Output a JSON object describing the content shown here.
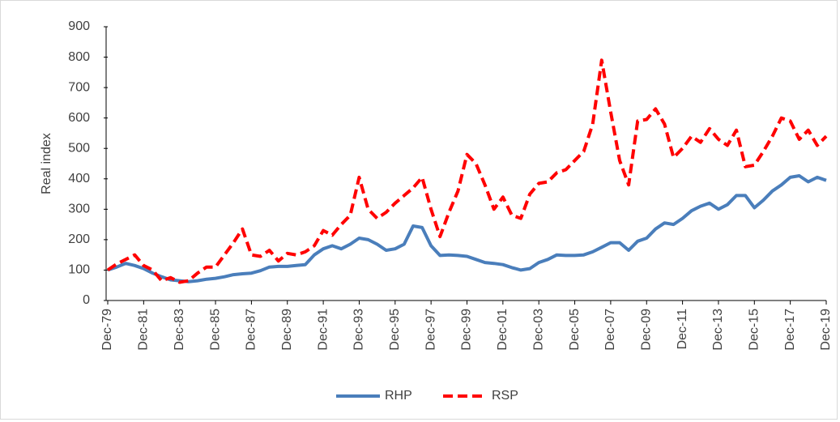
{
  "chart_data": {
    "type": "line",
    "y_label": "Real index",
    "categories": [
      "Dec-79",
      null,
      null,
      null,
      "Dec-81",
      null,
      null,
      null,
      "Dec-83",
      null,
      null,
      null,
      "Dec-85",
      null,
      null,
      null,
      "Dec-87",
      null,
      null,
      null,
      "Dec-89",
      null,
      null,
      null,
      "Dec-91",
      null,
      null,
      null,
      "Dec-93",
      null,
      null,
      null,
      "Dec-95",
      null,
      null,
      null,
      "Dec-97",
      null,
      null,
      null,
      "Dec-99",
      null,
      null,
      null,
      "Dec-01",
      null,
      null,
      null,
      "Dec-03",
      null,
      null,
      null,
      "Dec-05",
      null,
      null,
      null,
      "Dec-07",
      null,
      null,
      null,
      "Dec-09",
      null,
      null,
      null,
      "Dec-11",
      null,
      null,
      null,
      "Dec-13",
      null,
      null,
      null,
      "Dec-15",
      null,
      null,
      null,
      "Dec-17",
      null,
      null,
      null,
      "Dec-19"
    ],
    "series": [
      {
        "name": "RHP",
        "color": "#4a7ebb",
        "dash": false,
        "values": [
          100,
          110,
          122,
          115,
          105,
          90,
          78,
          68,
          65,
          62,
          65,
          70,
          73,
          78,
          85,
          88,
          90,
          98,
          110,
          112,
          112,
          115,
          118,
          150,
          170,
          180,
          170,
          185,
          205,
          200,
          185,
          165,
          170,
          185,
          245,
          240,
          180,
          148,
          150,
          148,
          145,
          135,
          125,
          122,
          118,
          108,
          100,
          105,
          125,
          135,
          150,
          148,
          148,
          150,
          160,
          175,
          190,
          190,
          165,
          195,
          205,
          235,
          255,
          250,
          270,
          295,
          310,
          320,
          300,
          315,
          345,
          345,
          305,
          330,
          360,
          380,
          405,
          410,
          390,
          405,
          395
        ]
      },
      {
        "name": "RSP",
        "color": "#ff0000",
        "dash": true,
        "values": [
          100,
          120,
          135,
          150,
          115,
          100,
          65,
          75,
          60,
          65,
          90,
          110,
          110,
          150,
          190,
          235,
          150,
          145,
          165,
          130,
          155,
          150,
          160,
          180,
          230,
          215,
          250,
          280,
          405,
          300,
          270,
          290,
          320,
          345,
          370,
          405,
          300,
          210,
          290,
          360,
          480,
          450,
          380,
          300,
          340,
          280,
          270,
          350,
          385,
          390,
          420,
          430,
          460,
          490,
          580,
          790,
          620,
          460,
          380,
          590,
          595,
          630,
          580,
          470,
          500,
          540,
          520,
          565,
          530,
          510,
          560,
          440,
          445,
          490,
          540,
          600,
          590,
          530,
          560,
          510,
          540
        ]
      }
    ],
    "ylim": [
      0,
      900
    ],
    "yticks": [
      0,
      100,
      200,
      300,
      400,
      500,
      600,
      700,
      800,
      900
    ],
    "grid": false,
    "legend": "bottom"
  }
}
